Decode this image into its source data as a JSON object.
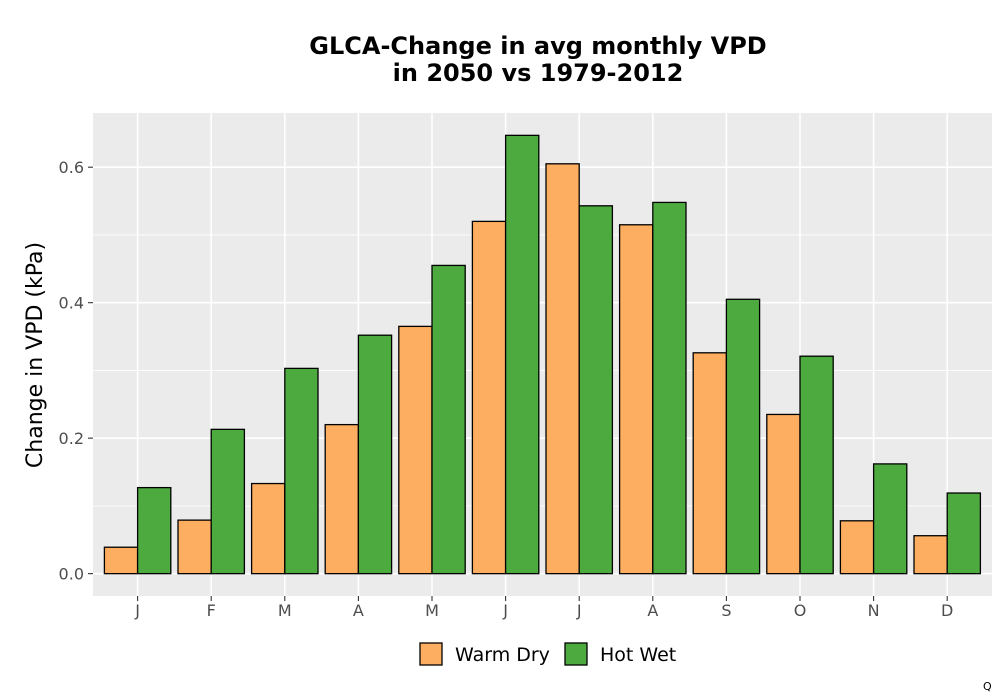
{
  "chart_data": {
    "type": "bar",
    "title_lines": [
      "GLCA-Change in avg monthly VPD",
      "in 2050 vs 1979-2012"
    ],
    "xlabel": "",
    "ylabel": "Change in VPD (kPa)",
    "categories": [
      "J",
      "F",
      "M",
      "A",
      "M",
      "J",
      "J",
      "A",
      "S",
      "O",
      "N",
      "D"
    ],
    "series": [
      {
        "name": "Warm Dry",
        "color": "#FDAE61",
        "values": [
          0.039,
          0.079,
          0.133,
          0.22,
          0.365,
          0.52,
          0.605,
          0.515,
          0.326,
          0.235,
          0.078,
          0.056
        ]
      },
      {
        "name": "Hot Wet",
        "color": "#4DAA3F",
        "values": [
          0.127,
          0.213,
          0.303,
          0.352,
          0.455,
          0.647,
          0.543,
          0.548,
          0.405,
          0.321,
          0.162,
          0.119
        ]
      }
    ],
    "ylim": [
      -0.033,
      0.68
    ],
    "yticks": [
      0.0,
      0.2,
      0.4,
      0.6
    ],
    "ytick_labels": [
      "0.0",
      "0.2",
      "0.4",
      "0.6"
    ],
    "grid": true,
    "legend_position": "bottom"
  },
  "corner_label": "Q"
}
